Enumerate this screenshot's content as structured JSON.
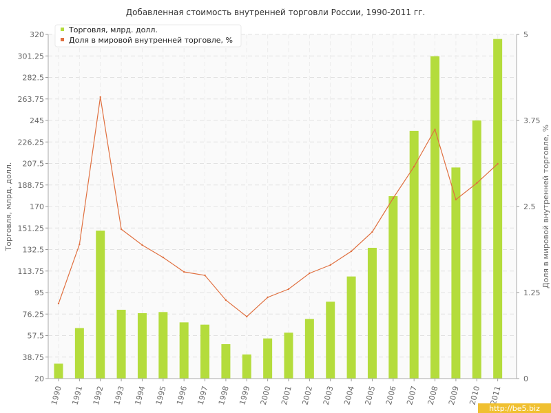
{
  "chart_data": {
    "type": "bar",
    "title": "Добавленная стоимость внутренней торговли России, 1990-2011 гг.",
    "categories": [
      "1990",
      "1991",
      "1992",
      "1993",
      "1994",
      "1995",
      "1996",
      "1997",
      "1998",
      "1999",
      "2000",
      "2001",
      "2002",
      "2003",
      "2004",
      "2005",
      "2006",
      "2007",
      "2008",
      "2009",
      "2010",
      "2011"
    ],
    "series": [
      {
        "name": "Торговля, млрд. долл.",
        "type": "bar",
        "axis": "left",
        "color": "#b4dc3c",
        "values": [
          33,
          64,
          149,
          80,
          77,
          78,
          69,
          67,
          50,
          41,
          55,
          60,
          72,
          87,
          109,
          134,
          179,
          236,
          301,
          204,
          245,
          316
        ]
      },
      {
        "name": "Доля в мировой внутренней торговле, %",
        "type": "line",
        "axis": "right",
        "color": "#e07040",
        "values": [
          1.09,
          1.95,
          4.09,
          2.17,
          1.94,
          1.76,
          1.55,
          1.5,
          1.14,
          0.9,
          1.18,
          1.3,
          1.53,
          1.65,
          1.85,
          2.13,
          2.62,
          3.08,
          3.62,
          2.6,
          2.84,
          3.12
        ]
      }
    ],
    "ylabel": "Торговля, млрд. долл.",
    "y2label": "Доля в мировой внутренней торговле, %",
    "ylim": [
      20,
      320
    ],
    "y2lim": [
      0,
      5
    ],
    "yticks": [
      "20",
      "38.75",
      "57.5",
      "76.25",
      "95",
      "113.75",
      "132.5",
      "151.25",
      "170",
      "188.75",
      "207.5",
      "226.25",
      "245",
      "263.75",
      "282.5",
      "301.25",
      "320"
    ],
    "y2ticks": [
      "0",
      "1.25",
      "2.5",
      "3.75",
      "5"
    ],
    "grid": true,
    "legend_position": "top-left"
  },
  "watermark": "http://be5.biz"
}
